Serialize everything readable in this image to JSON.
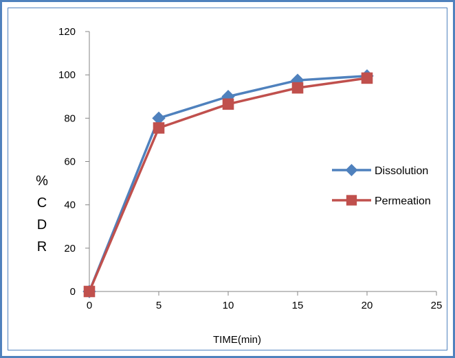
{
  "chart_data": {
    "type": "line",
    "title": "",
    "xlabel": "TIME(min)",
    "ylabel": "% C D R",
    "ylabel_lines": [
      "%",
      "C",
      "D",
      "R"
    ],
    "x": [
      0,
      5,
      10,
      15,
      20
    ],
    "xlim": [
      0,
      25
    ],
    "ylim": [
      0,
      120
    ],
    "xticks": [
      0,
      5,
      10,
      15,
      20,
      25
    ],
    "yticks": [
      0,
      20,
      40,
      60,
      80,
      100,
      120
    ],
    "grid": false,
    "legend_position": "right",
    "series": [
      {
        "name": "Dissolution",
        "values": [
          0,
          80,
          90,
          97.5,
          99.5
        ],
        "color": "#4f81bd",
        "marker": "diamond"
      },
      {
        "name": "Permeation",
        "values": [
          0,
          75.5,
          86.5,
          94,
          98.5
        ],
        "color": "#c0504d",
        "marker": "square"
      }
    ]
  }
}
